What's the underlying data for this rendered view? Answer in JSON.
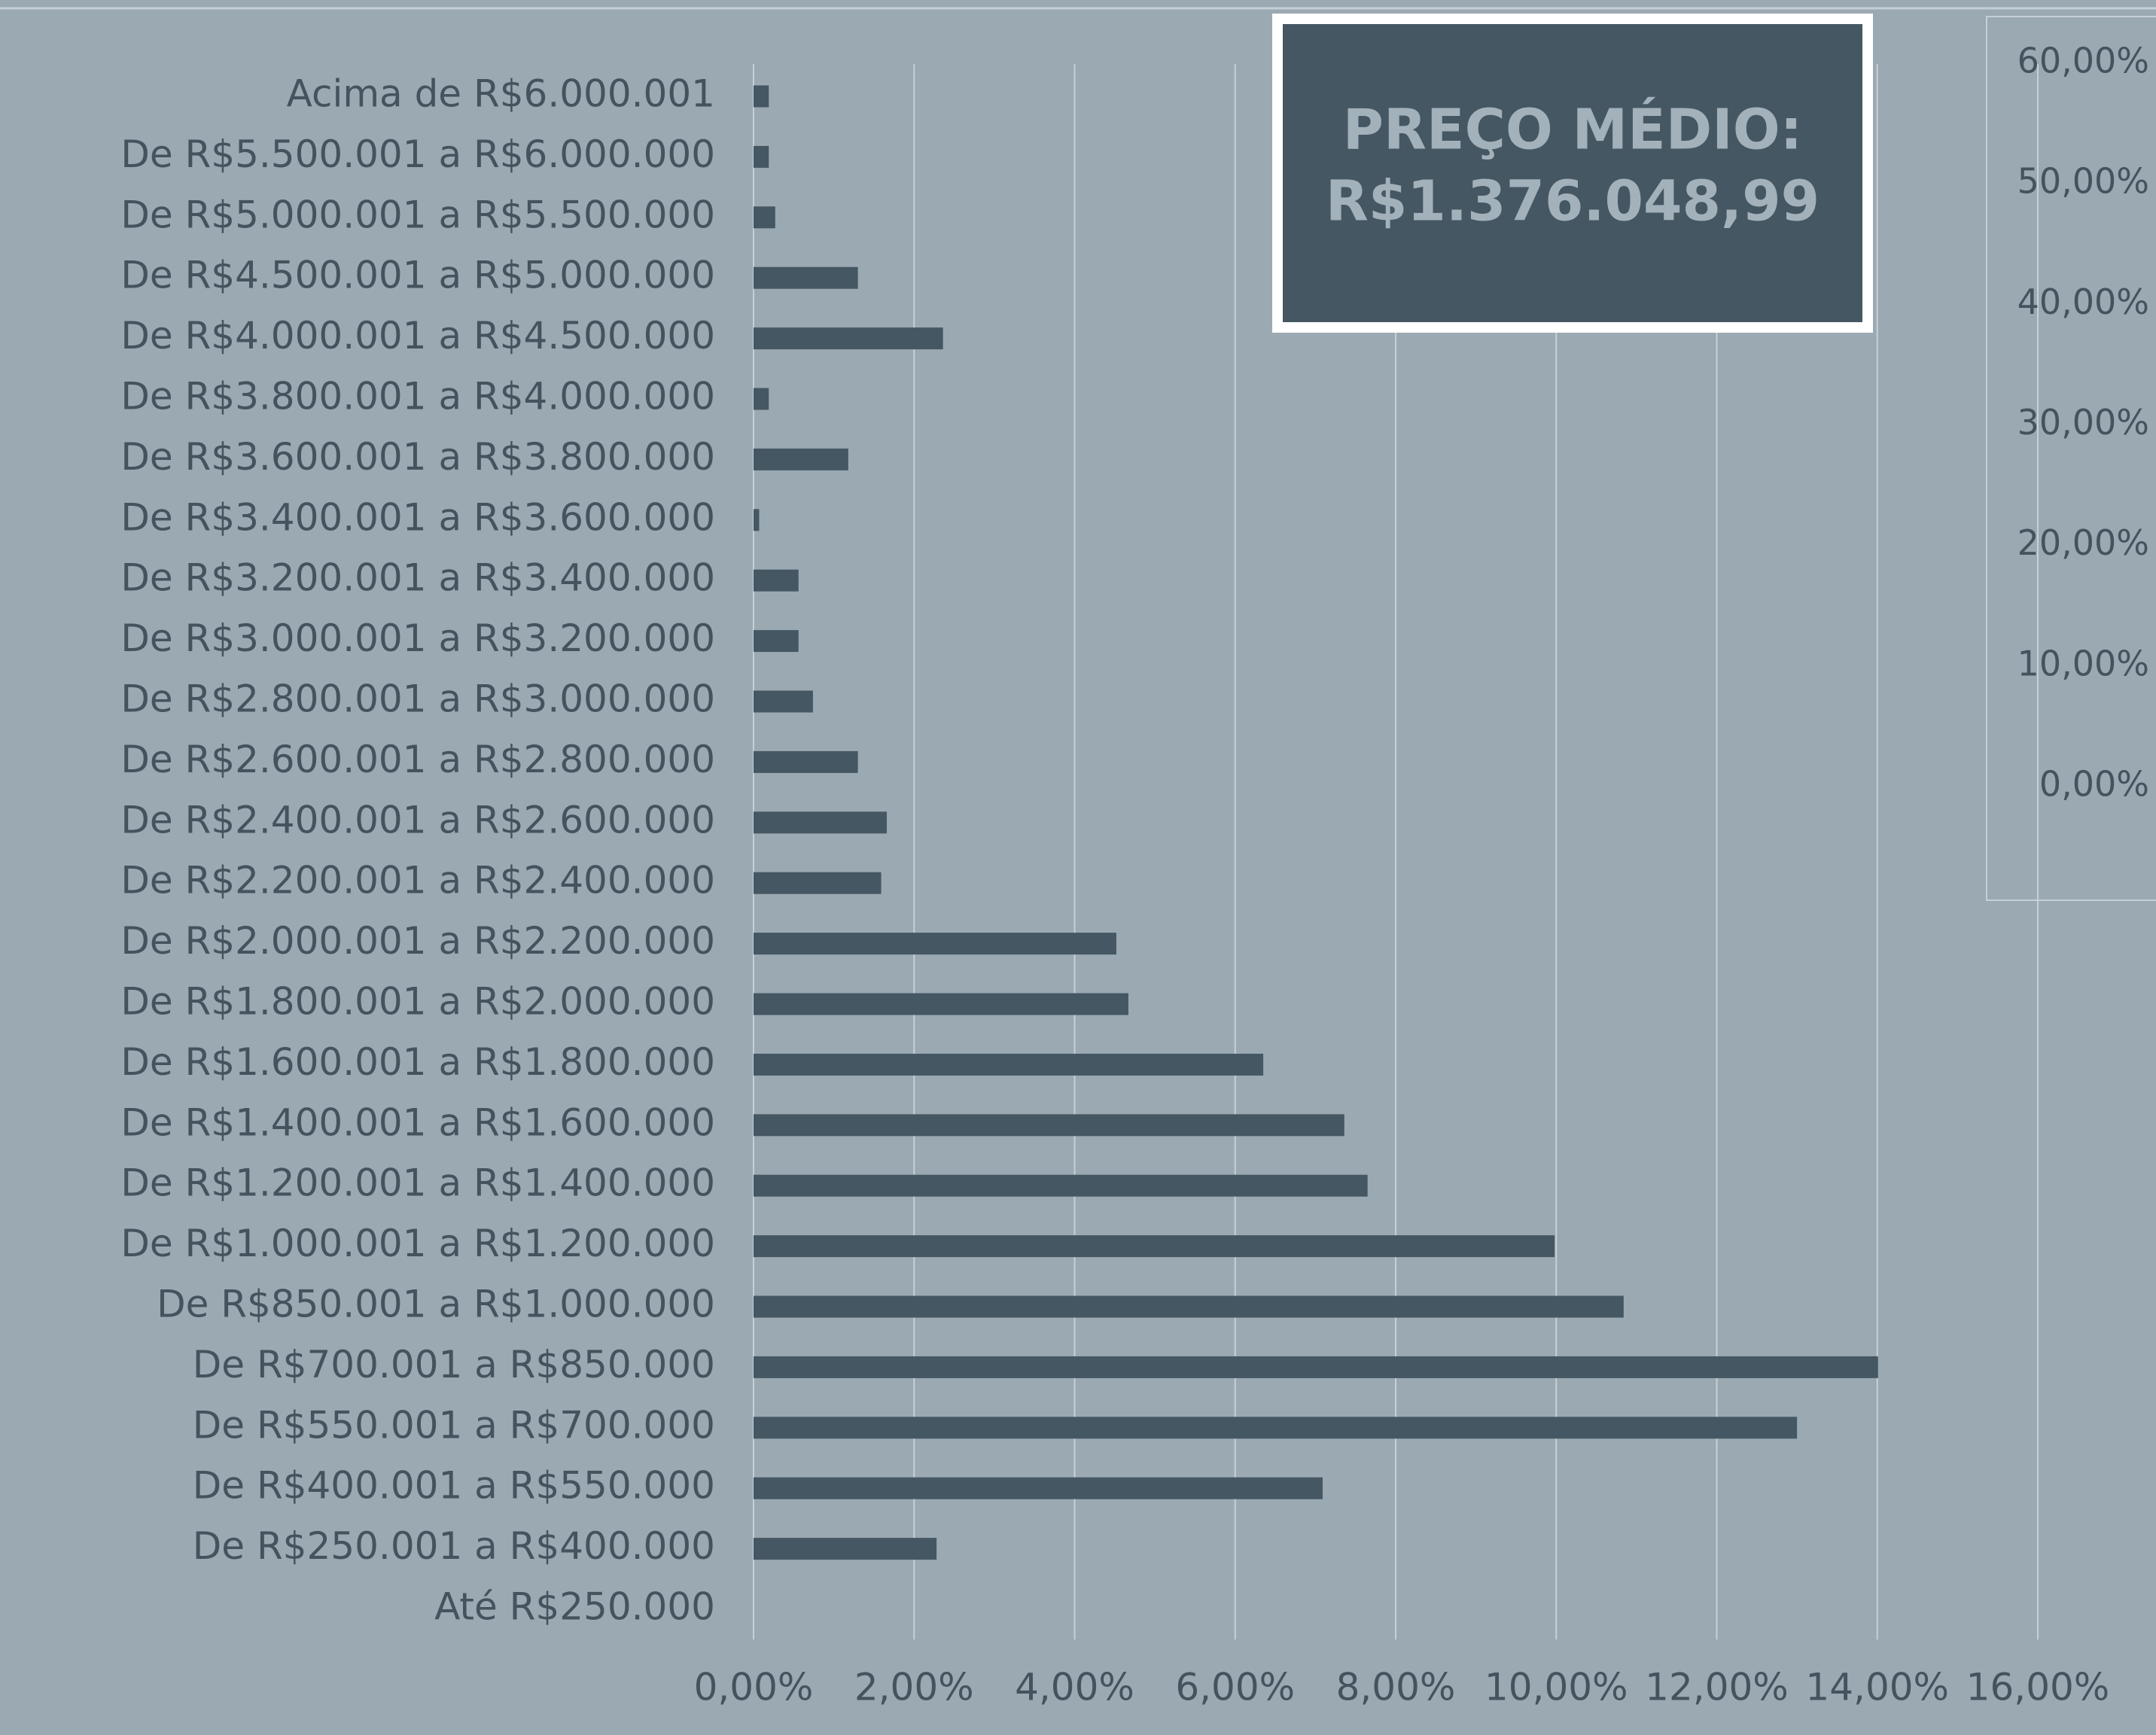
{
  "chart_data": [
    {
      "type": "hbar",
      "annotation": [
        "PREÇO MÉDIO:",
        "R$1.376.048,99"
      ],
      "categories": [
        "Acima de R$6.000.001",
        "De R$5.500.001 a R$6.000.000",
        "De R$5.000.001 a R$5.500.000",
        "De R$4.500.001 a R$5.000.000",
        "De R$4.000.001 a R$4.500.000",
        "De R$3.800.001 a R$4.000.000",
        "De R$3.600.001 a R$3.800.000",
        "De R$3.400.001 a R$3.600.000",
        "De R$3.200.001 a R$3.400.000",
        "De R$3.000.001 a R$3.200.000",
        "De R$2.800.001 a R$3.000.000",
        "De R$2.600.001 a R$2.800.000",
        "De R$2.400.001 a R$2.600.000",
        "De R$2.200.001 a R$2.400.000",
        "De R$2.000.001 a R$2.200.000",
        "De R$1.800.001 a R$2.000.000",
        "De R$1.600.001 a R$1.800.000",
        "De R$1.400.001 a R$1.600.000",
        "De R$1.200.001 a R$1.400.000",
        "De R$1.000.001 a R$1.200.000",
        "De R$850.001 a R$1.000.000",
        "De R$700.001 a R$850.000",
        "De R$550.001 a R$700.000",
        "De R$400.001 a R$550.000",
        "De R$250.001 a R$400.000",
        "Até R$250.000"
      ],
      "values": [
        0.19,
        0.19,
        0.27,
        1.3,
        2.36,
        0.19,
        1.18,
        0.07,
        0.56,
        0.56,
        0.74,
        1.3,
        1.66,
        1.59,
        4.52,
        4.67,
        6.35,
        7.36,
        7.65,
        9.98,
        10.84,
        14.01,
        13.0,
        7.09,
        2.28,
        0
      ],
      "color": "#455763",
      "xlim": [
        0,
        16
      ],
      "xticks": [
        {
          "value": 0,
          "label": "0,00%"
        },
        {
          "value": 2,
          "label": "2,00%"
        },
        {
          "value": 4,
          "label": "4,00%"
        },
        {
          "value": 6,
          "label": "6,00%"
        },
        {
          "value": 8,
          "label": "8,00%"
        },
        {
          "value": 10,
          "label": "10,00%"
        },
        {
          "value": 12,
          "label": "12,00%"
        },
        {
          "value": 14,
          "label": "14,00%"
        },
        {
          "value": 16,
          "label": "16,00%"
        }
      ],
      "grid": true
    },
    {
      "type": "axis",
      "ylim": [
        0,
        60
      ],
      "yticks": [
        {
          "value": 0,
          "label": "0,00%"
        },
        {
          "value": 10,
          "label": "10,00%"
        },
        {
          "value": 20,
          "label": "20,00%"
        },
        {
          "value": 30,
          "label": "30,00%"
        },
        {
          "value": 40,
          "label": "40,00%"
        },
        {
          "value": 50,
          "label": "50,00%"
        },
        {
          "value": 60,
          "label": "60,00%"
        }
      ]
    }
  ]
}
